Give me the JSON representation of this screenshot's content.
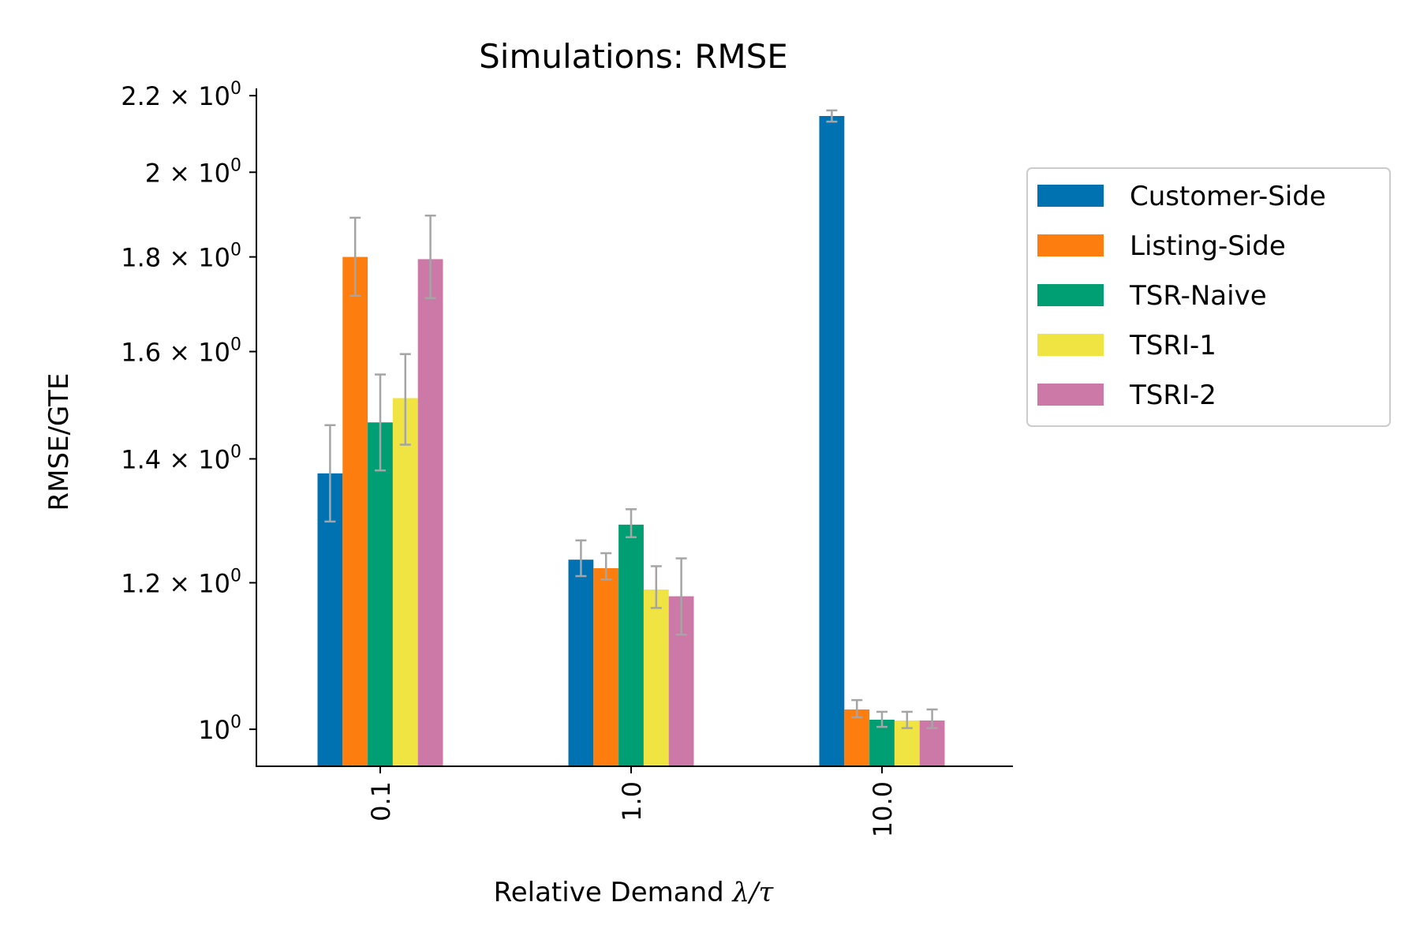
{
  "chart_data": {
    "type": "bar",
    "title": "Simulations: RMSE",
    "xlabel_prefix": "Relative Demand ",
    "xlabel_math": "λ/τ",
    "ylabel": "RMSE/GTE",
    "yscale": "log",
    "ylim": [
      0.955,
      2.22
    ],
    "categories": [
      "0.1",
      "1.0",
      "10.0"
    ],
    "yticks": [
      {
        "value": 1.0,
        "mantissa": "",
        "exp": "0",
        "base": "10"
      },
      {
        "value": 1.2,
        "mantissa": "1.2",
        "exp": "0",
        "base": "10"
      },
      {
        "value": 1.4,
        "mantissa": "1.4",
        "exp": "0",
        "base": "10"
      },
      {
        "value": 1.6,
        "mantissa": "1.6",
        "exp": "0",
        "base": "10"
      },
      {
        "value": 1.8,
        "mantissa": "1.8",
        "exp": "0",
        "base": "10"
      },
      {
        "value": 2.0,
        "mantissa": "2",
        "exp": "0",
        "base": "10"
      },
      {
        "value": 2.2,
        "mantissa": "2.2",
        "exp": "0",
        "base": "10"
      }
    ],
    "series": [
      {
        "name": "Customer-Side",
        "color": "#0072b2",
        "values": [
          1.375,
          1.235,
          2.145
        ],
        "err_low": [
          1.295,
          1.21,
          2.13
        ],
        "err_high": [
          1.46,
          1.265,
          2.16
        ]
      },
      {
        "name": "Listing-Side",
        "color": "#fd7e0e",
        "values": [
          1.8,
          1.222,
          1.025
        ],
        "err_low": [
          1.715,
          1.205,
          1.015
        ],
        "err_high": [
          1.89,
          1.245,
          1.037
        ]
      },
      {
        "name": "TSR-Naive",
        "color": "#009e73",
        "values": [
          1.465,
          1.29,
          1.012
        ],
        "err_low": [
          1.38,
          1.27,
          1.003
        ],
        "err_high": [
          1.555,
          1.315,
          1.022
        ]
      },
      {
        "name": "TSRI-1",
        "color": "#f0e442",
        "values": [
          1.51,
          1.19,
          1.011
        ],
        "err_low": [
          1.425,
          1.163,
          1.0015
        ],
        "err_high": [
          1.595,
          1.225,
          1.022
        ]
      },
      {
        "name": "TSRI-2",
        "color": "#cc79a7",
        "values": [
          1.795,
          1.18,
          1.011
        ],
        "err_low": [
          1.71,
          1.125,
          1.0015
        ],
        "err_high": [
          1.895,
          1.237,
          1.025
        ]
      }
    ],
    "legend_position": "outside-right"
  }
}
